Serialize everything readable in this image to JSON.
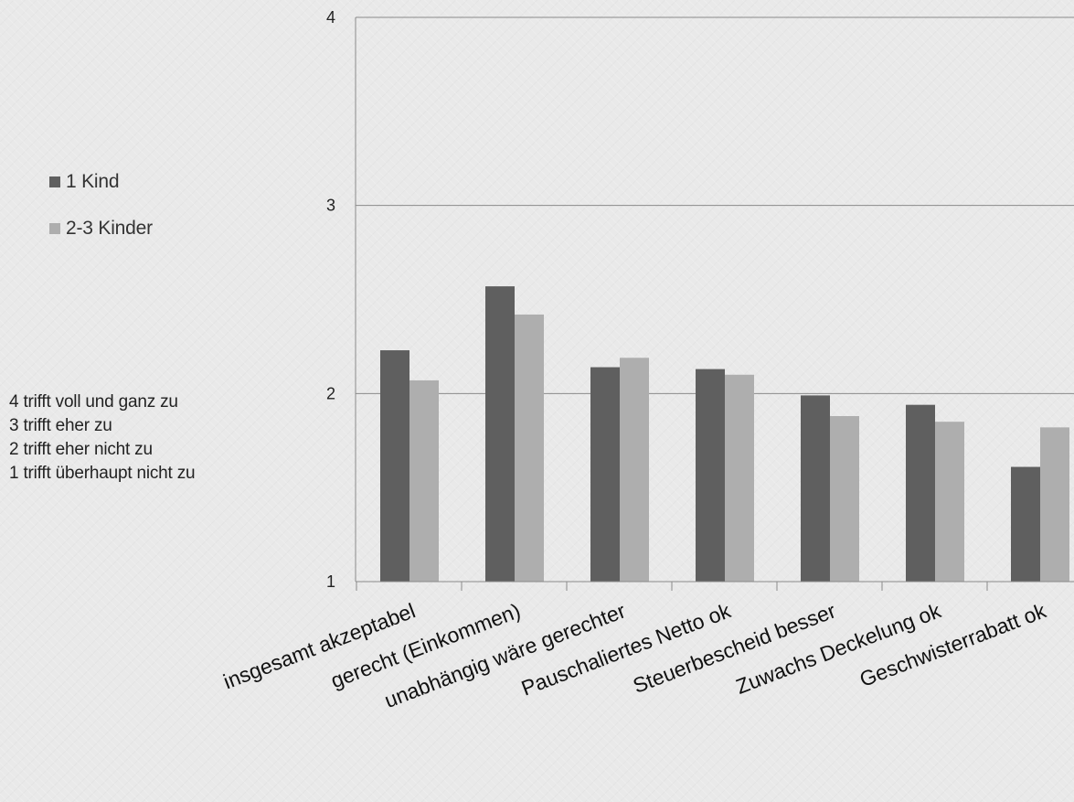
{
  "chart_data": {
    "type": "bar",
    "categories": [
      "insgesamt akzeptabel",
      "gerecht (Einkommen)",
      "unabhängig wäre gerechter",
      "Pauschaliertes Netto ok",
      "Steuerbescheid besser",
      "Zuwachs Deckelung ok",
      "Geschwisterrabatt ok"
    ],
    "series": [
      {
        "name": "1 Kind",
        "color": "#5f5f5f",
        "values": [
          2.23,
          2.57,
          2.14,
          2.13,
          1.99,
          1.94,
          1.61
        ]
      },
      {
        "name": "2-3 Kinder",
        "color": "#aeaeae",
        "values": [
          2.07,
          2.42,
          2.19,
          2.1,
          1.88,
          1.85,
          1.82
        ]
      }
    ],
    "yticks": [
      "1",
      "2",
      "3",
      "4"
    ],
    "ylim": [
      1,
      4
    ],
    "grid": true,
    "legend_position": "left"
  },
  "scale_note": [
    "4 trifft voll und ganz zu",
    "3 trifft eher zu",
    "2 trifft eher nicht zu",
    "1 trifft überhaupt nicht zu"
  ]
}
